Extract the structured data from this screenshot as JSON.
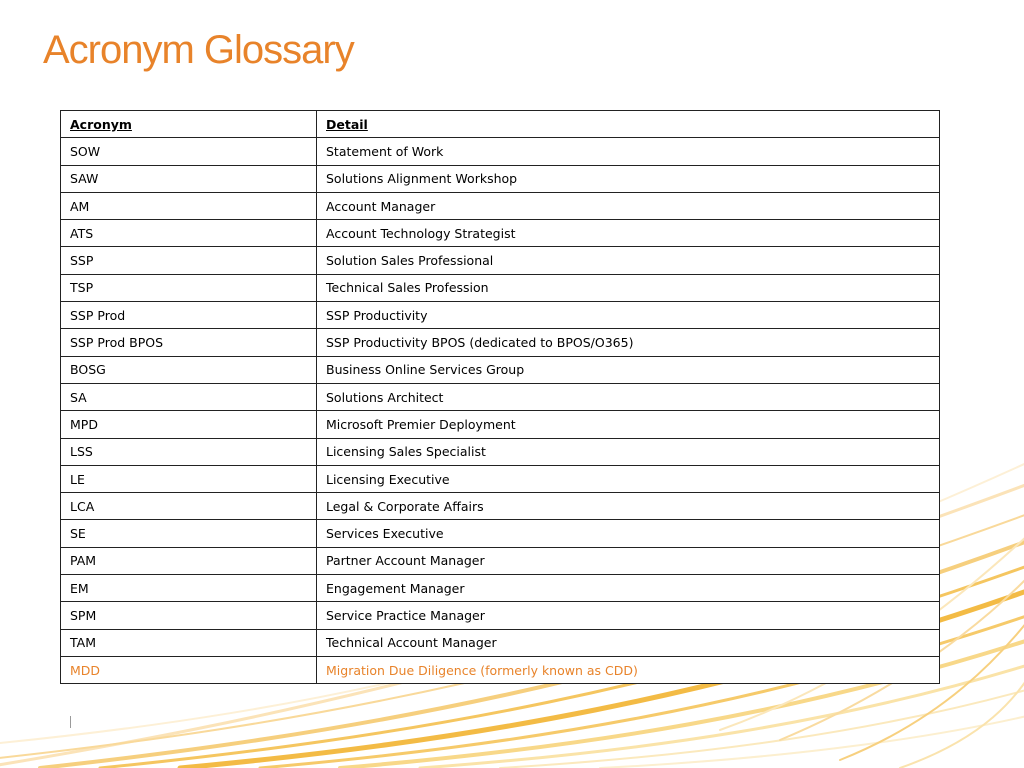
{
  "title": "Acronym Glossary",
  "accent_color": "#e8832a",
  "table": {
    "headers": {
      "acronym": "Acronym",
      "detail": "Detail"
    },
    "rows": [
      {
        "acronym": "SOW",
        "detail": "Statement of Work",
        "highlight": false
      },
      {
        "acronym": "SAW",
        "detail": "Solutions Alignment Workshop",
        "highlight": false
      },
      {
        "acronym": "AM",
        "detail": "Account Manager",
        "highlight": false
      },
      {
        "acronym": "ATS",
        "detail": "Account Technology Strategist",
        "highlight": false
      },
      {
        "acronym": "SSP",
        "detail": "Solution Sales Professional",
        "highlight": false
      },
      {
        "acronym": "TSP",
        "detail": "Technical Sales Profession",
        "highlight": false
      },
      {
        "acronym": "SSP Prod",
        "detail": "SSP Productivity",
        "highlight": false
      },
      {
        "acronym": "SSP Prod BPOS",
        "detail": "SSP Productivity BPOS (dedicated to BPOS/O365)",
        "highlight": false
      },
      {
        "acronym": "BOSG",
        "detail": "Business Online Services Group",
        "highlight": false
      },
      {
        "acronym": "SA",
        "detail": "Solutions Architect",
        "highlight": false
      },
      {
        "acronym": "MPD",
        "detail": "Microsoft Premier Deployment",
        "highlight": false
      },
      {
        "acronym": "LSS",
        "detail": "Licensing Sales Specialist",
        "highlight": false
      },
      {
        "acronym": "LE",
        "detail": "Licensing Executive",
        "highlight": false
      },
      {
        "acronym": "LCA",
        "detail": "Legal & Corporate Affairs",
        "highlight": false
      },
      {
        "acronym": "SE",
        "detail": "Services Executive",
        "highlight": false
      },
      {
        "acronym": "PAM",
        "detail": "Partner Account Manager",
        "highlight": false
      },
      {
        "acronym": "EM",
        "detail": "Engagement Manager",
        "highlight": false
      },
      {
        "acronym": "SPM",
        "detail": "Service Practice Manager",
        "highlight": false
      },
      {
        "acronym": "TAM",
        "detail": "Technical Account Manager",
        "highlight": false
      },
      {
        "acronym": "MDD",
        "detail": "Migration Due Diligence (formerly known as CDD)",
        "highlight": true
      }
    ]
  }
}
